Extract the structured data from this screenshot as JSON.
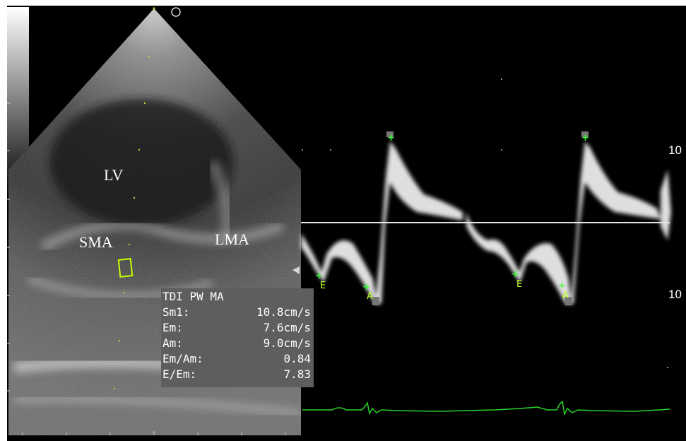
{
  "image_description_labels": {
    "lv": "LV",
    "sma": "SMA",
    "lma": "LMA"
  },
  "measurements": {
    "title": "TDI PW MA",
    "rows": [
      {
        "label": "Sm1:",
        "value": "10.8cm/s"
      },
      {
        "label": "Em:",
        "value": "7.6cm/s"
      },
      {
        "label": "Am:",
        "value": "9.0cm/s"
      },
      {
        "label": "Em/Am:",
        "value": "0.84"
      },
      {
        "label": "E/Em:",
        "value": "7.83"
      }
    ]
  },
  "doppler_markers": {
    "e1": "E",
    "a1": "A",
    "e2": "E",
    "a2": "A"
  },
  "velocity_scale": {
    "top": "10",
    "bottom": "10"
  },
  "colors": {
    "background": "#000000",
    "ecg_trace": "#2ad32a",
    "marker": "#b9ff2a",
    "sample_gate": "#c8ff00",
    "info_panel": "#5e5e5e"
  }
}
